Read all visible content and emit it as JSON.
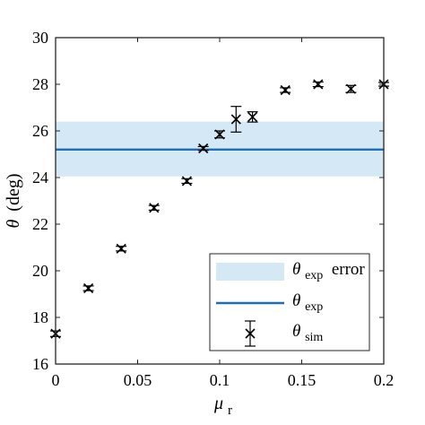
{
  "chart_data": {
    "type": "scatter",
    "xlabel": "μ",
    "xlabel_sub": "r",
    "ylabel_symbol": "θ",
    "ylabel_unit": "(deg)",
    "xlim": [
      0,
      0.2
    ],
    "ylim": [
      16,
      30
    ],
    "xticks": [
      "0",
      "0.05",
      "0.1",
      "0.15",
      "0.2"
    ],
    "yticks": [
      "16",
      "18",
      "20",
      "22",
      "24",
      "26",
      "28",
      "30"
    ],
    "grid": false,
    "legend_position": "bottom-right",
    "theta_exp": {
      "value": 25.2,
      "error_band": [
        24.05,
        26.4
      ],
      "line_color": "#1f6fb4",
      "band_color": "#d4e8f5"
    },
    "series": [
      {
        "name": "θsim",
        "marker": "x",
        "color": "#000000",
        "x": [
          0,
          0.02,
          0.04,
          0.06,
          0.08,
          0.09,
          0.1,
          0.11,
          0.12,
          0.14,
          0.16,
          0.18,
          0.2
        ],
        "y": [
          17.3,
          19.25,
          20.95,
          22.7,
          23.85,
          25.25,
          25.85,
          26.5,
          26.6,
          27.75,
          28.0,
          27.8,
          28.0
        ],
        "err": [
          0.12,
          0.1,
          0.1,
          0.1,
          0.1,
          0.08,
          0.15,
          0.55,
          0.22,
          0.1,
          0.1,
          0.15,
          0.08
        ]
      }
    ],
    "legend": [
      {
        "symbol": "θ",
        "sub": "exp",
        "suffix": " error"
      },
      {
        "symbol": "θ",
        "sub": "exp",
        "suffix": ""
      },
      {
        "symbol": "θ",
        "sub": "sim",
        "suffix": ""
      }
    ]
  }
}
